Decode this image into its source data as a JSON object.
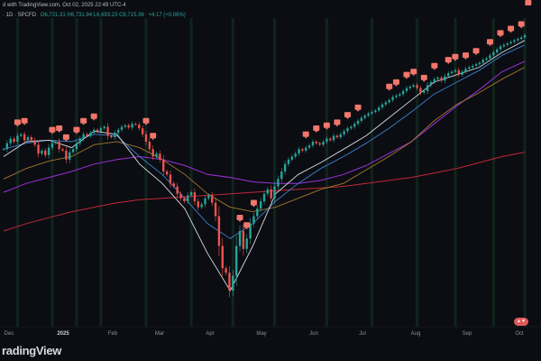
{
  "header": {
    "line1": "d with TradingView.com, Oct 02, 2025 22:49 UTC-4",
    "symbol": "· 1D · SPCFD",
    "values": "O6,721.31  H6,731.94  L6,693.23  C6,715.36",
    "change": "+4.17 (+0.06%)"
  },
  "footer": {
    "logo": "radingView"
  },
  "chart_data": {
    "type": "candlestick",
    "symbol": "SPCFD",
    "interval": "1D",
    "ohlc_last": {
      "open": 6721.31,
      "high": 6731.94,
      "low": 6693.23,
      "close": 6715.36
    },
    "change": 4.17,
    "change_pct": 0.06,
    "x_ticks": [
      {
        "label": "Dec",
        "bold": false
      },
      {
        "label": "2025",
        "bold": true
      },
      {
        "label": "Feb",
        "bold": false
      },
      {
        "label": "Mar",
        "bold": false
      },
      {
        "label": "Apr",
        "bold": false
      },
      {
        "label": "May",
        "bold": false
      },
      {
        "label": "Jun",
        "bold": false
      },
      {
        "label": "Jul",
        "bold": false
      },
      {
        "label": "Aug",
        "bold": false
      },
      {
        "label": "Sep",
        "bold": false
      },
      {
        "label": "Oct",
        "bold": false
      }
    ],
    "closes": [
      5950,
      5990,
      6020,
      6000,
      6040,
      6050,
      6010,
      6030,
      6010,
      5980,
      5920,
      5940,
      5910,
      5960,
      5990,
      6000,
      5950,
      5940,
      5880,
      5930,
      5950,
      5990,
      6020,
      6050,
      6040,
      6060,
      6080,
      6070,
      6090,
      6100,
      6040,
      6030,
      6060,
      6080,
      6100,
      6110,
      6095,
      6120,
      6115,
      6090,
      6050,
      6000,
      5950,
      5900,
      5920,
      5880,
      5800,
      5780,
      5720,
      5700,
      5650,
      5620,
      5600,
      5640,
      5660,
      5600,
      5560,
      5580,
      5620,
      5640,
      5590,
      5500,
      5300,
      5150,
      5120,
      5000,
      5100,
      5300,
      5400,
      5280,
      5350,
      5450,
      5500,
      5550,
      5600,
      5650,
      5680,
      5620,
      5700,
      5750,
      5800,
      5850,
      5880,
      5900,
      5920,
      5950,
      5940,
      5960,
      5975,
      6000,
      5990,
      5980,
      6000,
      6020,
      6010,
      6040,
      6030,
      6050,
      6070,
      6090,
      6100,
      6120,
      6140,
      6160,
      6175,
      6190,
      6200,
      6210,
      6230,
      6250,
      6265,
      6280,
      6300,
      6310,
      6320,
      6340,
      6360,
      6370,
      6380,
      6360,
      6330,
      6340,
      6380,
      6400,
      6420,
      6430,
      6410,
      6440,
      6460,
      6470,
      6480,
      6450,
      6470,
      6490,
      6500,
      6510,
      6520,
      6530,
      6550,
      6560,
      6580,
      6600,
      6620,
      6640,
      6650,
      6660,
      6670,
      6680,
      6690,
      6700,
      6715
    ],
    "sma_20": [
      5900,
      6000,
      6010,
      5960,
      6070,
      6050,
      5850,
      5720,
      5550,
      5250,
      5000,
      5300,
      5650,
      5780,
      5860,
      5950,
      6040,
      6160,
      6280,
      6400,
      6450,
      6500,
      6600,
      6680
    ],
    "sma_50": [
      5950,
      5990,
      6010,
      6000,
      6050,
      6040,
      5900,
      5780,
      5620,
      5450,
      5350,
      5450,
      5600,
      5720,
      5820,
      5900,
      5990,
      6090,
      6200,
      6320,
      6400,
      6480,
      6580,
      6650
    ],
    "sma_100": [
      5750,
      5820,
      5870,
      5900,
      5980,
      6000,
      5960,
      5880,
      5780,
      5650,
      5560,
      5530,
      5560,
      5620,
      5680,
      5720,
      5810,
      5900,
      6000,
      6140,
      6250,
      6330,
      6420,
      6500
    ],
    "sma_200": [
      5660,
      5720,
      5760,
      5800,
      5850,
      5880,
      5900,
      5880,
      5840,
      5780,
      5760,
      5730,
      5720,
      5720,
      5740,
      5780,
      5840,
      5920,
      6000,
      6120,
      6240,
      6350,
      6470,
      6540
    ],
    "sma_400": [
      5400,
      5450,
      5490,
      5530,
      5560,
      5590,
      5610,
      5620,
      5630,
      5640,
      5650,
      5660,
      5670,
      5680,
      5690,
      5700,
      5720,
      5740,
      5760,
      5790,
      5820,
      5860,
      5900,
      5930
    ],
    "signals": [
      4,
      6,
      14,
      16,
      18,
      21,
      23,
      26,
      41,
      43,
      68,
      70,
      72,
      87,
      90,
      93,
      96,
      99,
      102,
      111,
      113,
      116,
      118,
      121,
      124,
      128,
      130,
      133,
      136,
      140,
      143,
      146,
      149,
      151
    ],
    "highlighted_bars": [
      4,
      14,
      21,
      28,
      41,
      54,
      66,
      78,
      93,
      106,
      119,
      130,
      141,
      150
    ],
    "y_range": [
      4800,
      6800
    ]
  }
}
